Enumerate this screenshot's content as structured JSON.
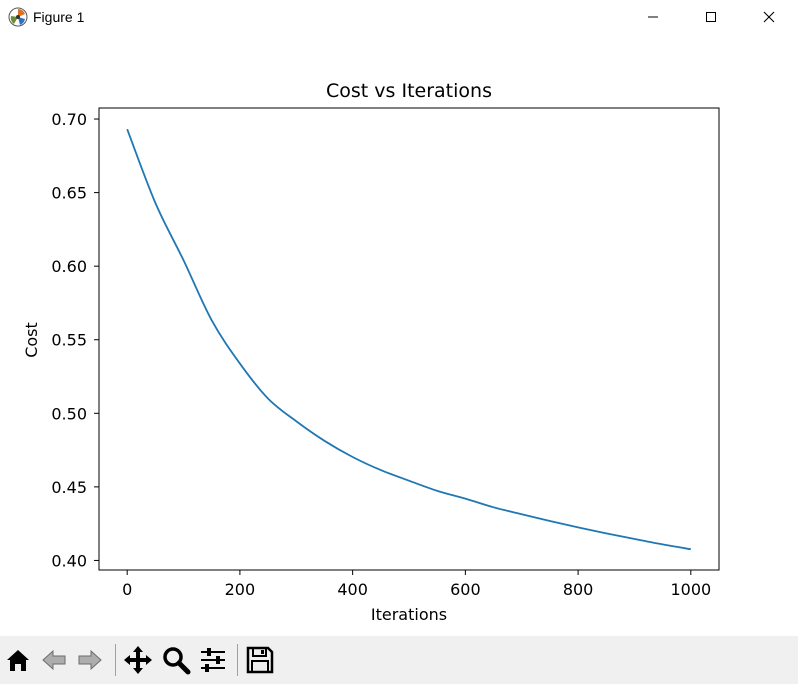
{
  "window": {
    "title": "Figure 1",
    "app_icon": "matplotlib-icon",
    "controls": [
      "minimize-icon",
      "maximize-icon",
      "close-icon"
    ]
  },
  "toolbar": {
    "buttons": [
      {
        "name": "home-button",
        "icon": "home-icon",
        "enabled": true
      },
      {
        "name": "back-button",
        "icon": "back-arrow-icon",
        "enabled": false
      },
      {
        "name": "forward-button",
        "icon": "forward-arrow-icon",
        "enabled": false
      },
      {
        "name": "pan-button",
        "icon": "move-icon",
        "enabled": true
      },
      {
        "name": "zoom-button",
        "icon": "magnifier-icon",
        "enabled": true
      },
      {
        "name": "configure-subplots-button",
        "icon": "sliders-icon",
        "enabled": true
      },
      {
        "name": "save-button",
        "icon": "floppy-disk-icon",
        "enabled": true
      }
    ]
  },
  "chart_data": {
    "type": "line",
    "title": "Cost vs Iterations",
    "xlabel": "Iterations",
    "ylabel": "Cost",
    "xlim": [
      -50,
      1050
    ],
    "ylim": [
      0.3935,
      0.7075
    ],
    "xticks": [
      0,
      200,
      400,
      600,
      800,
      1000
    ],
    "xtick_labels": [
      "0",
      "200",
      "400",
      "600",
      "800",
      "1000"
    ],
    "yticks": [
      0.4,
      0.45,
      0.5,
      0.55,
      0.6,
      0.65,
      0.7
    ],
    "ytick_labels": [
      "0.40",
      "0.45",
      "0.50",
      "0.55",
      "0.60",
      "0.65",
      "0.70"
    ],
    "grid": false,
    "color": "#1f77b4",
    "series": [
      {
        "x": [
          0,
          50,
          100,
          150,
          200,
          250,
          300,
          350,
          400,
          450,
          500,
          550,
          600,
          650,
          700,
          750,
          800,
          850,
          900,
          950,
          1000
        ],
        "values": [
          0.6931,
          0.643,
          0.604,
          0.5632,
          0.5338,
          0.51,
          0.4946,
          0.4813,
          0.4703,
          0.4614,
          0.4542,
          0.4473,
          0.442,
          0.4361,
          0.4314,
          0.4268,
          0.4225,
          0.4184,
          0.4146,
          0.4109,
          0.4076
        ]
      }
    ]
  }
}
